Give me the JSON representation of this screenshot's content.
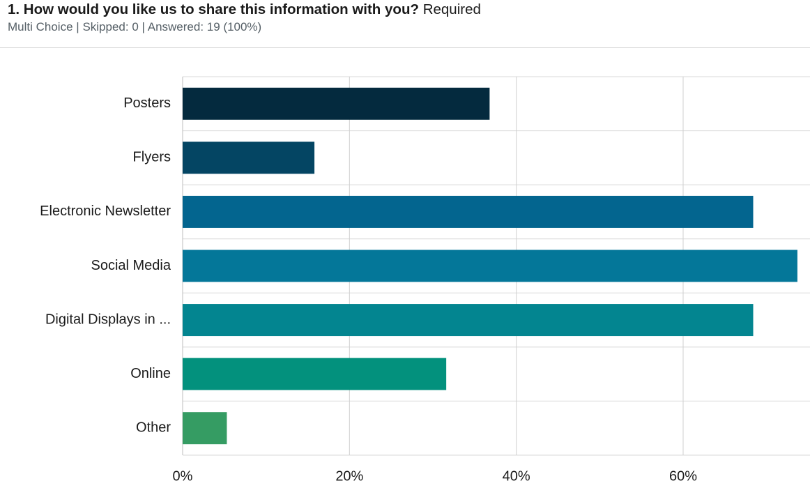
{
  "question": {
    "number_title": "1. How would you like us to share this information with you?",
    "required_label": "Required",
    "type": "Multi Choice",
    "skipped": "Skipped: 0",
    "answered": "Answered: 19 (100%)",
    "separator": "|"
  },
  "chart_data": {
    "type": "bar",
    "orientation": "horizontal",
    "categories": [
      "Posters",
      "Flyers",
      "Electronic Newsletter",
      "Social Media",
      "Digital Displays in ...",
      "Online",
      "Other"
    ],
    "values": [
      36.8,
      15.8,
      68.4,
      73.7,
      68.4,
      31.6,
      5.3
    ],
    "unit": "%",
    "xlim": [
      0,
      75
    ],
    "xticks": [
      0,
      20,
      40,
      60
    ],
    "xtick_labels": [
      "0%",
      "20%",
      "40%",
      "60%"
    ],
    "grid": true,
    "colors": [
      "#042a3e",
      "#044563",
      "#03658f",
      "#047799",
      "#038590",
      "#03917d",
      "#359c63"
    ]
  }
}
